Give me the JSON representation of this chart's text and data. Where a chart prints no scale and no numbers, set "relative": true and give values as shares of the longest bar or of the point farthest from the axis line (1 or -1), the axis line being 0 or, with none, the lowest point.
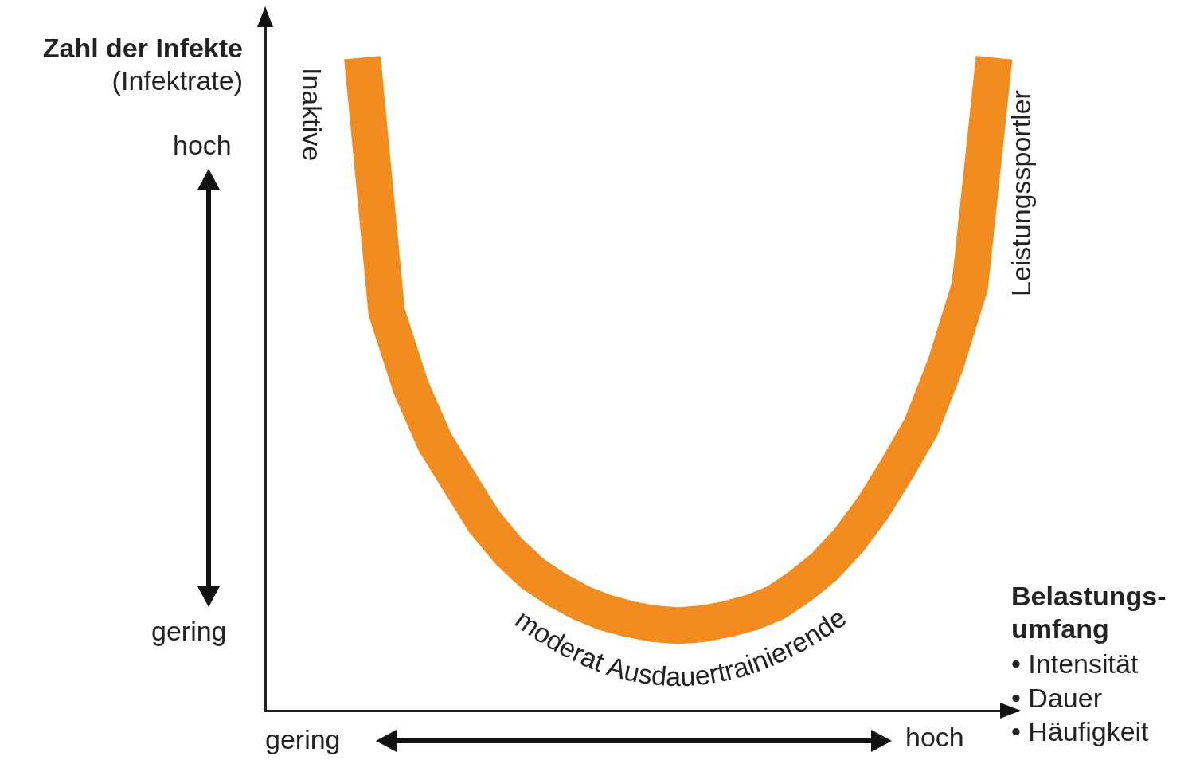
{
  "chart_data": {
    "type": "line",
    "relative": true,
    "xlabel": "Belastungs-\numfang",
    "ylabel": "Zahl der Infekte\n(Infektrate)",
    "categories": [
      null,
      null,
      null,
      null,
      null,
      null,
      null,
      null,
      null,
      null,
      null,
      null,
      null,
      null,
      null,
      null,
      null,
      null,
      null,
      null,
      null,
      null,
      null,
      null,
      null,
      null,
      null,
      null,
      null,
      null,
      null,
      null
    ],
    "series": [
      {
        "color": "#f28c1e",
        "values": [
          null,
          null,
          null,
          null,
          1.0,
          0.61,
          0.495,
          0.41,
          0.35,
          0.29,
          0.245,
          0.21,
          0.185,
          0.165,
          0.15,
          0.14,
          0.133,
          0.13,
          0.133,
          0.14,
          0.15,
          0.165,
          0.19,
          0.22,
          0.26,
          0.31,
          0.37,
          0.435,
          0.53,
          0.65,
          1.0,
          null
        ]
      }
    ],
    "annotations": [
      "Inaktive",
      "moderat Ausdauertrainierende",
      "Leistungssportler",
      "hoch",
      "gering",
      "gering",
      "hoch",
      "• Intensität",
      "• Dauer",
      "• Häufigkeit"
    ],
    "marker": "none",
    "line_style": "solid",
    "grid": false
  }
}
